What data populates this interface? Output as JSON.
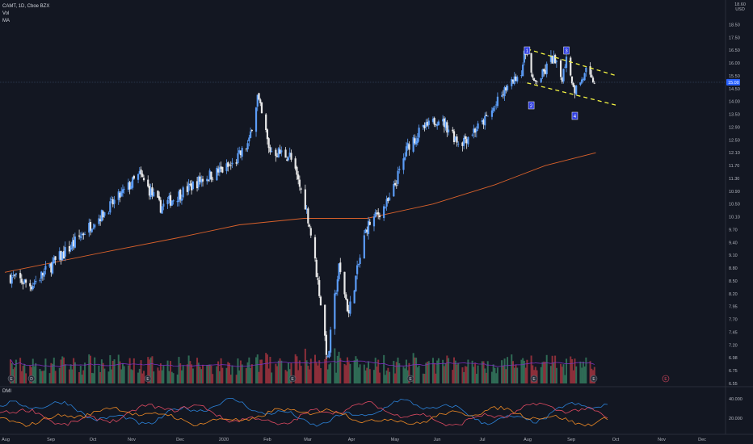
{
  "legend": {
    "symbol": "CAMT, 1D, Cboe BZX",
    "vol": "Vol",
    "ma": "MA"
  },
  "indicator": {
    "name": "DMI"
  },
  "colors": {
    "background": "#131722",
    "up": "#5b9cf6",
    "down": "#e8e8e8",
    "vol_up": "#2f6b55",
    "vol_down": "#8c2f3a",
    "ma": "#d9612b",
    "vol_ma": "#7b2fbe",
    "trend": "#f5f542",
    "label_bg": "#2f3ee0",
    "dmi_plus": "#2b82d9",
    "dmi_minus": "#e04a62",
    "adx": "#f08a24"
  },
  "chart_data": {
    "type": "candlestick",
    "price_axis": {
      "currency": "USD",
      "ticks": [
        18.5,
        17.5,
        16.5,
        16.0,
        15.5,
        14.5,
        14.0,
        13.5,
        12.9,
        12.5,
        12.1,
        11.7,
        11.3,
        10.9,
        10.5,
        10.1,
        9.7,
        9.4,
        9.1,
        8.8,
        8.5,
        8.2,
        7.95,
        7.7,
        7.45,
        7.2,
        6.98,
        6.75,
        6.55
      ],
      "tick_labels": [
        "18.50",
        "17.50",
        "16.50",
        "16.00",
        "15.50",
        "14.50",
        "14.00",
        "13.50",
        "12.90",
        "12.50",
        "12.10",
        "11.70",
        "11.30",
        "10.90",
        "10.50",
        "10.10",
        "9.70",
        "9.40",
        "9.10",
        "8.80",
        "8.50",
        "8.20",
        "7.95",
        "7.70",
        "7.45",
        "7.20",
        "6.98",
        "6.75",
        "6.55"
      ],
      "last_price": 15.0,
      "last_price_label": "15.00",
      "top_labels": [
        "18.60",
        "USD"
      ]
    },
    "time_axis": {
      "labels": [
        "Aug",
        "Sep",
        "Oct",
        "Nov",
        "Dec",
        "2020",
        "Feb",
        "Mar",
        "Apr",
        "May",
        "Jun",
        "Jul",
        "Aug",
        "Sep",
        "Oct",
        "Nov",
        "Dec"
      ]
    },
    "key_points": [
      {
        "date": "2019-08-05",
        "price": 8.6
      },
      {
        "date": "2019-08-20",
        "price": 8.4
      },
      {
        "date": "2019-09-20",
        "price": 9.4
      },
      {
        "date": "2019-10-10",
        "price": 10.2
      },
      {
        "date": "2019-11-05",
        "price": 11.4
      },
      {
        "date": "2019-11-20",
        "price": 10.4
      },
      {
        "date": "2019-12-20",
        "price": 11.3
      },
      {
        "date": "2020-01-10",
        "price": 11.7
      },
      {
        "date": "2020-01-22",
        "price": 12.4
      },
      {
        "date": "2020-01-28",
        "price": 14.2
      },
      {
        "date": "2020-02-05",
        "price": 12.2
      },
      {
        "date": "2020-02-20",
        "price": 12.0
      },
      {
        "date": "2020-03-02",
        "price": 10.5
      },
      {
        "date": "2020-03-18",
        "price": 6.9
      },
      {
        "date": "2020-03-26",
        "price": 8.8
      },
      {
        "date": "2020-04-02",
        "price": 7.8
      },
      {
        "date": "2020-04-15",
        "price": 9.8
      },
      {
        "date": "2020-05-01",
        "price": 10.6
      },
      {
        "date": "2020-05-15",
        "price": 12.4
      },
      {
        "date": "2020-06-05",
        "price": 13.3
      },
      {
        "date": "2020-06-20",
        "price": 12.4
      },
      {
        "date": "2020-07-05",
        "price": 13.0
      },
      {
        "date": "2020-07-20",
        "price": 14.2
      },
      {
        "date": "2020-08-03",
        "price": 15.8
      },
      {
        "date": "2020-08-07",
        "price": 16.6
      },
      {
        "date": "2020-08-12",
        "price": 14.9
      },
      {
        "date": "2020-08-25",
        "price": 16.2
      },
      {
        "date": "2020-09-01",
        "price": 15.3
      },
      {
        "date": "2020-09-04",
        "price": 16.4
      },
      {
        "date": "2020-09-10",
        "price": 14.5
      },
      {
        "date": "2020-09-18",
        "price": 15.6
      },
      {
        "date": "2020-09-24",
        "price": 15.0
      }
    ],
    "moving_average": [
      {
        "date": "2019-08-01",
        "price": 8.7
      },
      {
        "date": "2019-10-15",
        "price": 9.2
      },
      {
        "date": "2019-12-01",
        "price": 9.5
      },
      {
        "date": "2020-01-15",
        "price": 9.85
      },
      {
        "date": "2020-03-01",
        "price": 10.05
      },
      {
        "date": "2020-04-15",
        "price": 10.05
      },
      {
        "date": "2020-06-01",
        "price": 10.5
      },
      {
        "date": "2020-07-15",
        "price": 11.1
      },
      {
        "date": "2020-08-20",
        "price": 11.7
      },
      {
        "date": "2020-09-25",
        "price": 12.1
      }
    ],
    "trendlines": [
      {
        "from": {
          "date": "2020-08-07",
          "price": 16.6
        },
        "to": {
          "date": "2020-10-10",
          "price": 15.5
        }
      },
      {
        "from": {
          "date": "2020-08-07",
          "price": 14.95
        },
        "to": {
          "date": "2020-10-10",
          "price": 13.85
        }
      }
    ],
    "wave_labels": [
      {
        "label": "1",
        "date": "2020-08-07",
        "position": "above"
      },
      {
        "label": "2",
        "date": "2020-08-10",
        "position": "below"
      },
      {
        "label": "3",
        "date": "2020-09-04",
        "position": "above"
      },
      {
        "label": "4",
        "date": "2020-09-10",
        "position": "below"
      }
    ],
    "event_markers": [
      "E",
      "D",
      "E",
      "E",
      "E",
      "E",
      "E",
      "E"
    ],
    "dmi_axis": {
      "ticks": [
        40,
        20
      ],
      "tick_labels": [
        "40.000",
        "20.000"
      ]
    },
    "grid": false
  }
}
